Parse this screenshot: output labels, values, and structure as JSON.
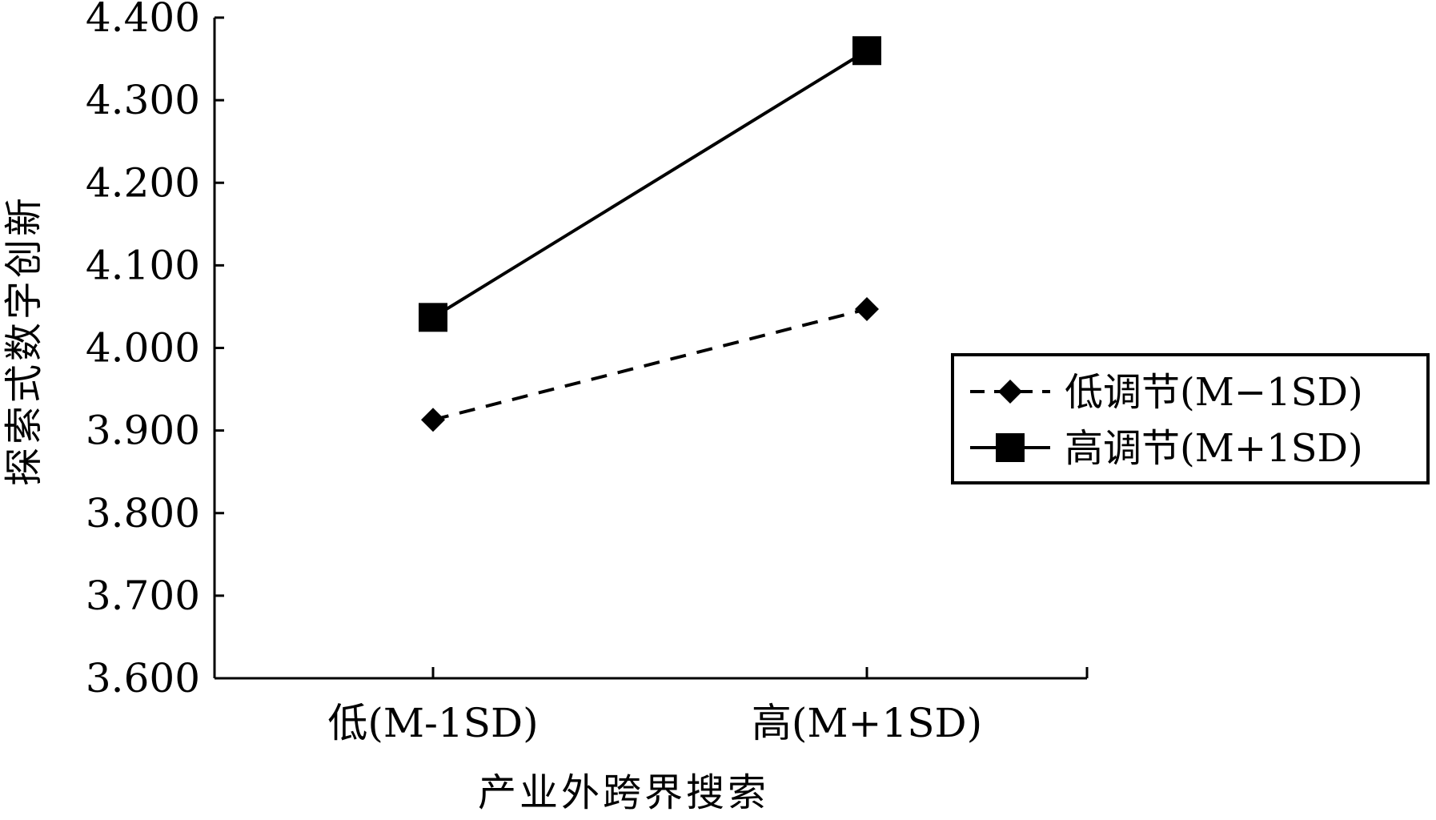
{
  "chart_data": {
    "type": "line",
    "title": "",
    "xlabel": "产业外跨界搜索",
    "ylabel": "探索式数字创新",
    "categories": [
      "低(M-1SD)",
      "高(M+1SD)"
    ],
    "ylim": [
      3.6,
      4.4
    ],
    "yticks": [
      "3.600",
      "3.700",
      "3.800",
      "3.900",
      "4.000",
      "4.100",
      "4.200",
      "4.300",
      "4.400"
    ],
    "ytick_values": [
      3.6,
      3.7,
      3.8,
      3.9,
      4.0,
      4.1,
      4.2,
      4.3,
      4.4
    ],
    "grid": false,
    "legend_position": "right",
    "series": [
      {
        "name": "低调节(M−1SD)",
        "values": [
          3.913,
          4.047
        ],
        "line_style": "dashed",
        "marker": "diamond",
        "color": "#000000"
      },
      {
        "name": "高调节(M+1SD)",
        "values": [
          4.037,
          4.36
        ],
        "line_style": "solid",
        "marker": "square",
        "color": "#000000"
      }
    ]
  }
}
